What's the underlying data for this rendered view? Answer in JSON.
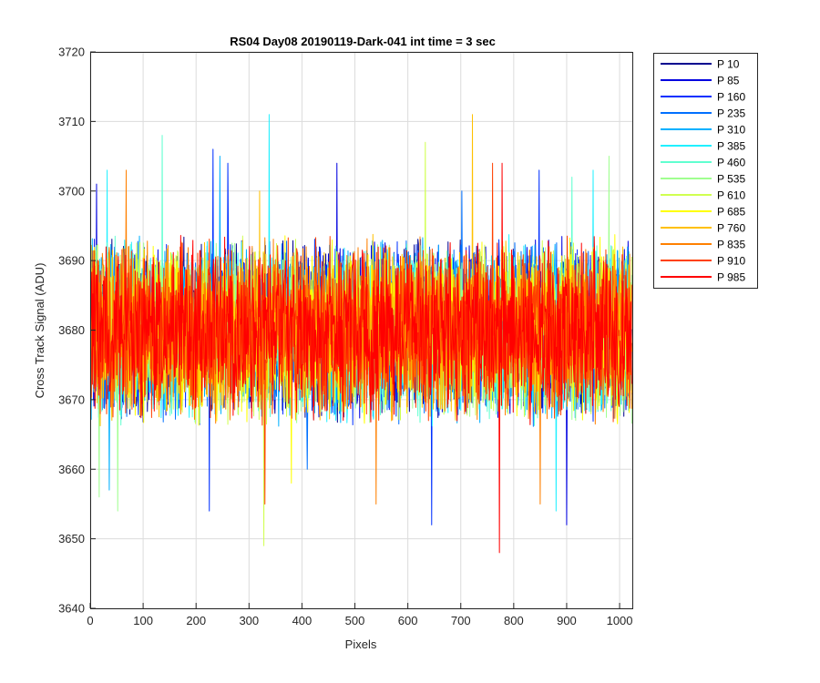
{
  "chart_data": {
    "type": "line",
    "title": "RS04 Day08 20190119-Dark-041 int time = 3 sec",
    "xlabel": "Pixels",
    "ylabel": "Cross Track Signal (ADU)",
    "xlim": [
      0,
      1024
    ],
    "ylim": [
      3640,
      3720
    ],
    "xticks": [
      "0",
      "100",
      "200",
      "300",
      "400",
      "500",
      "600",
      "700",
      "800",
      "900",
      "1000"
    ],
    "yticks": [
      "3640",
      "3650",
      "3660",
      "3670",
      "3680",
      "3690",
      "3700",
      "3710",
      "3720"
    ],
    "grid": true,
    "legend_position": "outside-top-right",
    "noise": {
      "mean": 3680,
      "amplitude": 9,
      "n_points": 1024
    },
    "series": [
      {
        "name": "P 10",
        "color": "#00008f",
        "spikes": []
      },
      {
        "name": "P 85",
        "color": "#0000e0",
        "spikes": [
          {
            "x": 12,
            "y": 3701
          },
          {
            "x": 466,
            "y": 3704
          },
          {
            "x": 900,
            "y": 3652
          }
        ]
      },
      {
        "name": "P 160",
        "color": "#0030ff",
        "spikes": [
          {
            "x": 225,
            "y": 3654
          },
          {
            "x": 232,
            "y": 3706
          },
          {
            "x": 260,
            "y": 3704
          },
          {
            "x": 645,
            "y": 3652
          },
          {
            "x": 848,
            "y": 3703
          }
        ]
      },
      {
        "name": "P 235",
        "color": "#0070ff",
        "spikes": [
          {
            "x": 410,
            "y": 3660
          },
          {
            "x": 702,
            "y": 3700
          }
        ]
      },
      {
        "name": "P 310",
        "color": "#00b0ff",
        "spikes": [
          {
            "x": 36,
            "y": 3657
          },
          {
            "x": 245,
            "y": 3705
          }
        ]
      },
      {
        "name": "P 385",
        "color": "#20f0ff",
        "spikes": [
          {
            "x": 338,
            "y": 3711
          },
          {
            "x": 32,
            "y": 3703
          },
          {
            "x": 950,
            "y": 3703
          },
          {
            "x": 880,
            "y": 3654
          }
        ]
      },
      {
        "name": "P 460",
        "color": "#60ffd0",
        "spikes": [
          {
            "x": 136,
            "y": 3708
          },
          {
            "x": 910,
            "y": 3702
          }
        ]
      },
      {
        "name": "P 535",
        "color": "#a0ff90",
        "spikes": [
          {
            "x": 52,
            "y": 3654
          },
          {
            "x": 17,
            "y": 3656
          },
          {
            "x": 980,
            "y": 3705
          }
        ]
      },
      {
        "name": "P 610",
        "color": "#d0ff50",
        "spikes": [
          {
            "x": 328,
            "y": 3649
          },
          {
            "x": 633,
            "y": 3707
          }
        ]
      },
      {
        "name": "P 685",
        "color": "#ffff00",
        "spikes": [
          {
            "x": 380,
            "y": 3658
          }
        ]
      },
      {
        "name": "P 760",
        "color": "#ffc000",
        "spikes": [
          {
            "x": 722,
            "y": 3711
          },
          {
            "x": 320,
            "y": 3700
          }
        ]
      },
      {
        "name": "P 835",
        "color": "#ff8000",
        "spikes": [
          {
            "x": 68,
            "y": 3703
          },
          {
            "x": 850,
            "y": 3655
          },
          {
            "x": 540,
            "y": 3655
          }
        ]
      },
      {
        "name": "P 910",
        "color": "#ff4000",
        "spikes": [
          {
            "x": 760,
            "y": 3704
          },
          {
            "x": 330,
            "y": 3655
          }
        ]
      },
      {
        "name": "P 985",
        "color": "#ff0000",
        "spikes": [
          {
            "x": 773,
            "y": 3648
          },
          {
            "x": 778,
            "y": 3704
          }
        ]
      }
    ]
  }
}
